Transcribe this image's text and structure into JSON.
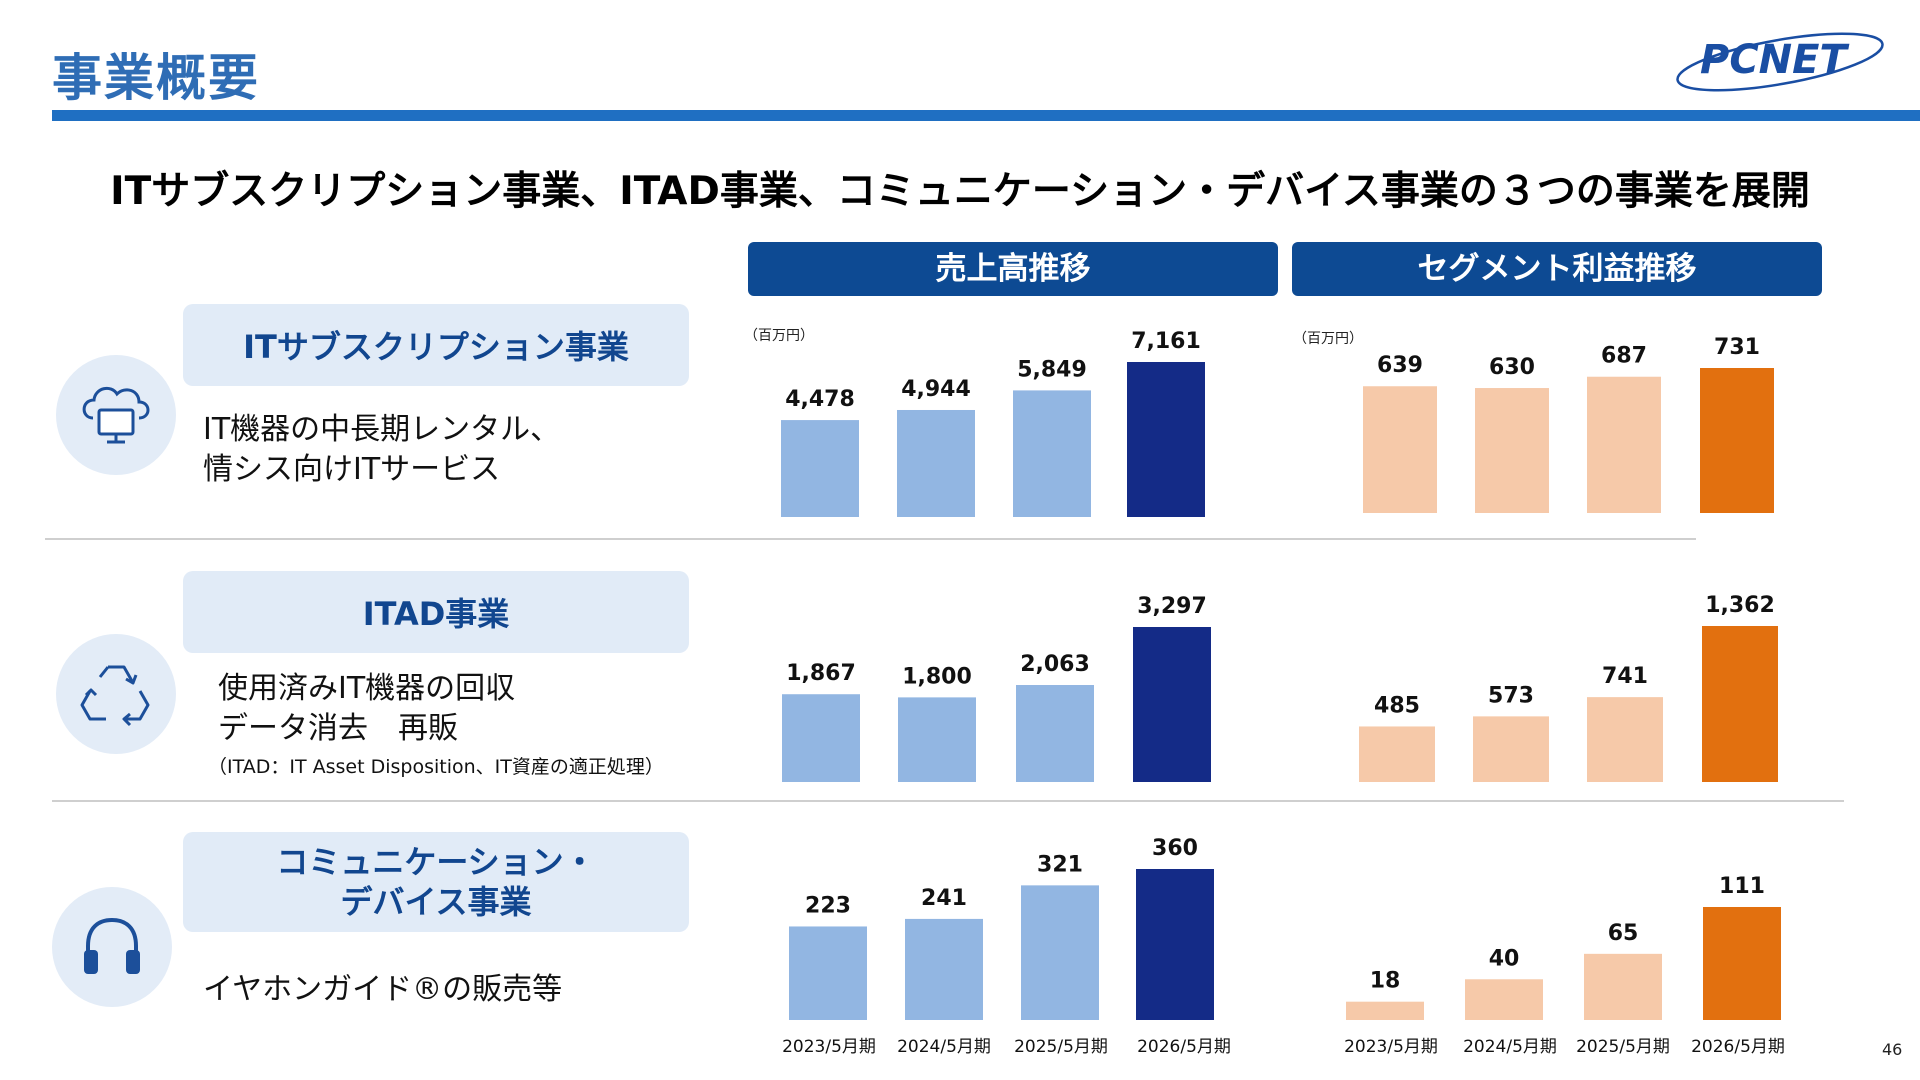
{
  "header": {
    "title": "事業概要",
    "logo_text": "PCNET",
    "headline": "ITサブスクリプション事業、ITAD事業、コミュニケーション・デバイス事業の３つの事業を展開"
  },
  "columns": {
    "sales_label": "売上高推移",
    "profit_label": "セグメント利益推移",
    "unit": "（百万円）"
  },
  "segments": [
    {
      "name": "ITサブスクリプション事業",
      "desc1": "IT機器の中長期レンタル、",
      "desc2": "情シス向けITサービス",
      "icon": "cloud-monitor-icon"
    },
    {
      "name": "ITAD事業",
      "desc1": "使用済みIT機器の回収",
      "desc2": "データ消去　再販",
      "note": "（ITAD：IT Asset Disposition、IT資産の適正処理）",
      "icon": "recycle-icon"
    },
    {
      "name_line1": "コミュニケーション・",
      "name_line2": "デバイス事業",
      "desc1": "イヤホンガイド®の販売等",
      "icon": "headset-icon"
    }
  ],
  "colors": {
    "sales_past": "#92b6e2",
    "sales_latest": "#142b87",
    "profit_past": "#f6c9a9",
    "profit_latest": "#e2700f"
  },
  "chart_data": [
    {
      "type": "bar",
      "title": "売上高推移",
      "segment": "ITサブスクリプション事業",
      "categories": [
        "2023/5月期",
        "2024/5月期",
        "2025/5月期",
        "2026/5月期"
      ],
      "values": [
        4478,
        4944,
        5849,
        7161
      ],
      "labels": [
        "4,478",
        "4,944",
        "5,849",
        "7,161"
      ]
    },
    {
      "type": "bar",
      "title": "セグメント利益推移",
      "segment": "ITサブスクリプション事業",
      "categories": [
        "2023/5月期",
        "2024/5月期",
        "2025/5月期",
        "2026/5月期"
      ],
      "values": [
        639,
        630,
        687,
        731
      ],
      "labels": [
        "639",
        "630",
        "687",
        "731"
      ]
    },
    {
      "type": "bar",
      "title": "売上高推移",
      "segment": "ITAD事業",
      "categories": [
        "2023/5月期",
        "2024/5月期",
        "2025/5月期",
        "2026/5月期"
      ],
      "values": [
        1867,
        1800,
        2063,
        3297
      ],
      "labels": [
        "1,867",
        "1,800",
        "2,063",
        "3,297"
      ]
    },
    {
      "type": "bar",
      "title": "セグメント利益推移",
      "segment": "ITAD事業",
      "categories": [
        "2023/5月期",
        "2024/5月期",
        "2025/5月期",
        "2026/5月期"
      ],
      "values": [
        485,
        573,
        741,
        1362
      ],
      "labels": [
        "485",
        "573",
        "741",
        "1,362"
      ]
    },
    {
      "type": "bar",
      "title": "売上高推移",
      "segment": "コミュニケーション・デバイス事業",
      "categories": [
        "2023/5月期",
        "2024/5月期",
        "2025/5月期",
        "2026/5月期"
      ],
      "values": [
        223,
        241,
        321,
        360
      ],
      "labels": [
        "223",
        "241",
        "321",
        "360"
      ]
    },
    {
      "type": "bar",
      "title": "セグメント利益推移",
      "segment": "コミュニケーション・デバイス事業",
      "categories": [
        "2023/5月期",
        "2024/5月期",
        "2025/5月期",
        "2026/5月期"
      ],
      "values": [
        18,
        40,
        65,
        111
      ],
      "labels": [
        "18",
        "40",
        "65",
        "111"
      ]
    }
  ],
  "footer": {
    "page_number": "46"
  }
}
